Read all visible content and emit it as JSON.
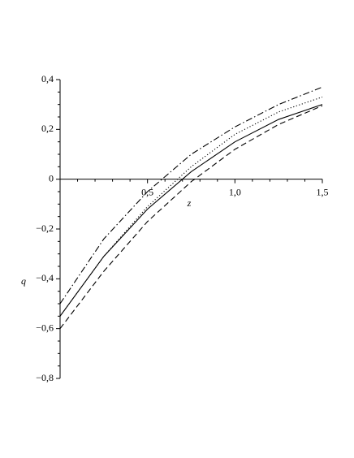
{
  "chart_data": {
    "type": "line",
    "x_label": "z",
    "y_label": "q",
    "x": [
      0,
      0.25,
      0.5,
      0.75,
      1.0,
      1.25,
      1.5
    ],
    "series": [
      {
        "color": "#000000",
        "style": "solid",
        "values": [
          -0.55,
          -0.31,
          -0.12,
          0.03,
          0.15,
          0.24,
          0.3
        ]
      },
      {
        "color": "#000000",
        "style": "dotted",
        "values": [
          -0.55,
          -0.31,
          -0.11,
          0.05,
          0.18,
          0.27,
          0.33
        ]
      },
      {
        "color": "#000000",
        "style": "dashdot",
        "values": [
          -0.5,
          -0.24,
          -0.05,
          0.1,
          0.21,
          0.3,
          0.37
        ]
      },
      {
        "color": "#000000",
        "style": "dashed",
        "values": [
          -0.6,
          -0.37,
          -0.17,
          -0.01,
          0.12,
          0.22,
          0.295
        ]
      }
    ],
    "xlim": [
      0,
      1.5
    ],
    "ylim": [
      -0.8,
      0.4
    ],
    "xticks": [
      {
        "value": 0.5,
        "label": "0,5"
      },
      {
        "value": 1.0,
        "label": "1,0"
      },
      {
        "value": 1.5,
        "label": "1,5"
      }
    ],
    "yticks": [
      {
        "value": 0.4,
        "label": "0,4"
      },
      {
        "value": 0.2,
        "label": "0,2"
      },
      0,
      {
        "value": -0.2,
        "label": "−0,2"
      },
      {
        "value": -0.4,
        "label": "−0,4"
      },
      {
        "value": -0.6,
        "label": "−0,6"
      },
      {
        "value": -0.8,
        "label": "−0,8"
      }
    ],
    "minor_xticks": [
      0.1,
      0.2,
      0.3,
      0.4,
      0.6,
      0.7,
      0.8,
      0.9,
      1.1,
      1.2,
      1.3,
      1.4
    ],
    "minor_yticks": [
      0.35,
      0.3,
      0.25,
      0.15,
      0.1,
      0.05,
      -0.05,
      -0.1,
      -0.15,
      -0.25,
      -0.3,
      -0.35,
      -0.45,
      -0.5,
      -0.55,
      -0.65,
      -0.7,
      -0.75
    ]
  }
}
